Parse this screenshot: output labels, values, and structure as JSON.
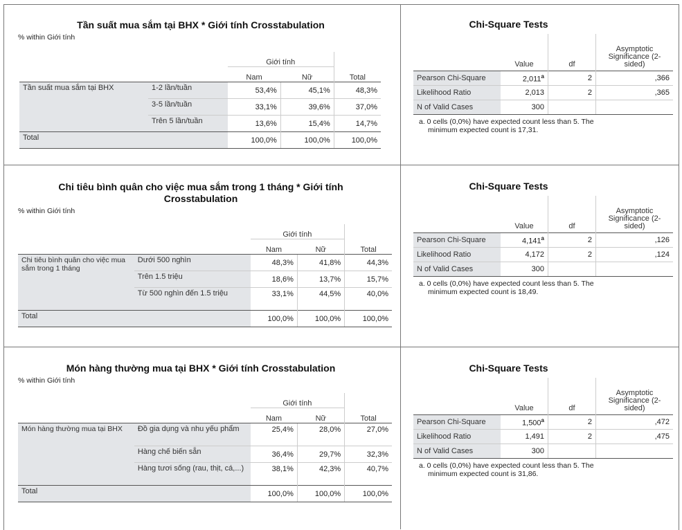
{
  "sections": [
    {
      "crosstab": {
        "title": "Tần suất mua sắm tại BHX * Giới tính Crosstabulation",
        "within": "% within Giới tính",
        "group_header": "Giới tính",
        "col_nam": "Nam",
        "col_nu": "Nữ",
        "col_total": "Total",
        "row_label": "Tần suất mua sắm tại BHX",
        "rows": [
          {
            "label": "1-2 lần/tuần",
            "nam": "53,4%",
            "nu": "45,1%",
            "total": "48,3%"
          },
          {
            "label": "3-5 lần/tuần",
            "nam": "33,1%",
            "nu": "39,6%",
            "total": "37,0%"
          },
          {
            "label": "Trên 5 lần/tuần",
            "nam": "13,6%",
            "nu": "15,4%",
            "total": "14,7%"
          }
        ],
        "total_row": {
          "label": "Total",
          "nam": "100,0%",
          "nu": "100,0%",
          "total": "100,0%"
        }
      },
      "chi": {
        "title": "Chi-Square Tests",
        "h_value": "Value",
        "h_df": "df",
        "h_sig": "Asymptotic Significance (2-sided)",
        "rows": [
          {
            "label": "Pearson Chi-Square",
            "value": "2,011",
            "sup": "a",
            "df": "2",
            "sig": ",366"
          },
          {
            "label": "Likelihood Ratio",
            "value": "2,013",
            "df": "2",
            "sig": ",365"
          },
          {
            "label": "N of Valid Cases",
            "value": "300",
            "df": "",
            "sig": ""
          }
        ],
        "note1": "a. 0 cells (0,0%) have expected count less than 5. The",
        "note2": "minimum expected count is 17,31."
      }
    },
    {
      "crosstab": {
        "title": "Chi tiêu bình quân cho việc mua sắm trong 1 tháng * Giới tính Crosstabulation",
        "within": "% within Giới tính",
        "group_header": "Giới tính",
        "col_nam": "Nam",
        "col_nu": "Nữ",
        "col_total": "Total",
        "row_label": "Chi tiêu bình quân cho việc mua sắm trong 1 tháng",
        "rows": [
          {
            "label": "Dưới 500 nghìn",
            "nam": "48,3%",
            "nu": "41,8%",
            "total": "44,3%"
          },
          {
            "label": "Trên 1.5 triệu",
            "nam": "18,6%",
            "nu": "13,7%",
            "total": "15,7%"
          },
          {
            "label": "Từ 500 nghìn đến 1.5 triệu",
            "nam": "33,1%",
            "nu": "44,5%",
            "total": "40,0%"
          }
        ],
        "total_row": {
          "label": "Total",
          "nam": "100,0%",
          "nu": "100,0%",
          "total": "100,0%"
        }
      },
      "chi": {
        "title": "Chi-Square Tests",
        "h_value": "Value",
        "h_df": "df",
        "h_sig": "Asymptotic Significance (2-sided)",
        "rows": [
          {
            "label": "Pearson Chi-Square",
            "value": "4,141",
            "sup": "a",
            "df": "2",
            "sig": ",126"
          },
          {
            "label": "Likelihood Ratio",
            "value": "4,172",
            "df": "2",
            "sig": ",124"
          },
          {
            "label": "N of Valid Cases",
            "value": "300",
            "df": "",
            "sig": ""
          }
        ],
        "note1": "a. 0 cells (0,0%) have expected count less than 5. The",
        "note2": "minimum expected count is 18,49."
      }
    },
    {
      "crosstab": {
        "title": "Món hàng thường mua tại BHX * Giới tính Crosstabulation",
        "within": "% within Giới tính",
        "group_header": "Giới tính",
        "col_nam": "Nam",
        "col_nu": "Nữ",
        "col_total": "Total",
        "row_label": "Món hàng thường mua tại BHX",
        "rows": [
          {
            "label": "Đồ gia dụng và nhu yếu phẩm",
            "nam": "25,4%",
            "nu": "28,0%",
            "total": "27,0%"
          },
          {
            "label": "Hàng chế biến sẵn",
            "nam": "36,4%",
            "nu": "29,7%",
            "total": "32,3%"
          },
          {
            "label": "Hàng tươi sống (rau, thịt, cá,...)",
            "nam": "38,1%",
            "nu": "42,3%",
            "total": "40,7%"
          }
        ],
        "total_row": {
          "label": "Total",
          "nam": "100,0%",
          "nu": "100,0%",
          "total": "100,0%"
        }
      },
      "chi": {
        "title": "Chi-Square Tests",
        "h_value": "Value",
        "h_df": "df",
        "h_sig": "Asymptotic Significance (2-sided)",
        "rows": [
          {
            "label": "Pearson Chi-Square",
            "value": "1,500",
            "sup": "a",
            "df": "2",
            "sig": ",472"
          },
          {
            "label": "Likelihood Ratio",
            "value": "1,491",
            "df": "2",
            "sig": ",475"
          },
          {
            "label": "N of Valid Cases",
            "value": "300",
            "df": "",
            "sig": ""
          }
        ],
        "note1": "a. 0 cells (0,0%) have expected count less than 5. The",
        "note2": "minimum expected count is 31,86."
      }
    }
  ]
}
